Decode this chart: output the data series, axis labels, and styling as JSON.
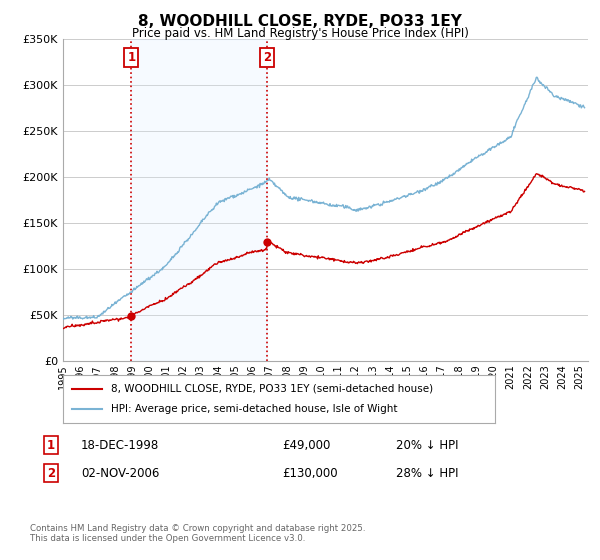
{
  "title": "8, WOODHILL CLOSE, RYDE, PO33 1EY",
  "subtitle": "Price paid vs. HM Land Registry's House Price Index (HPI)",
  "legend_line1": "8, WOODHILL CLOSE, RYDE, PO33 1EY (semi-detached house)",
  "legend_line2": "HPI: Average price, semi-detached house, Isle of Wight",
  "ylim": [
    0,
    350000
  ],
  "yticks": [
    0,
    50000,
    100000,
    150000,
    200000,
    250000,
    300000,
    350000
  ],
  "ytick_labels": [
    "£0",
    "£50K",
    "£100K",
    "£150K",
    "£200K",
    "£250K",
    "£300K",
    "£350K"
  ],
  "purchase1_date_label": "18-DEC-1998",
  "purchase1_price": 49000,
  "purchase1_price_label": "£49,000",
  "purchase1_hpi_label": "20% ↓ HPI",
  "purchase1_year": 1998.97,
  "purchase2_date_label": "02-NOV-2006",
  "purchase2_price": 130000,
  "purchase2_price_label": "£130,000",
  "purchase2_hpi_label": "28% ↓ HPI",
  "purchase2_year": 2006.84,
  "property_color": "#cc0000",
  "hpi_color": "#7ab3d4",
  "shade_color": "#ddeeff",
  "vline_color": "#cc0000",
  "background_color": "#ffffff",
  "grid_color": "#cccccc",
  "footer_text": "Contains HM Land Registry data © Crown copyright and database right 2025.\nThis data is licensed under the Open Government Licence v3.0.",
  "xmin": 1995,
  "xmax": 2025.5
}
